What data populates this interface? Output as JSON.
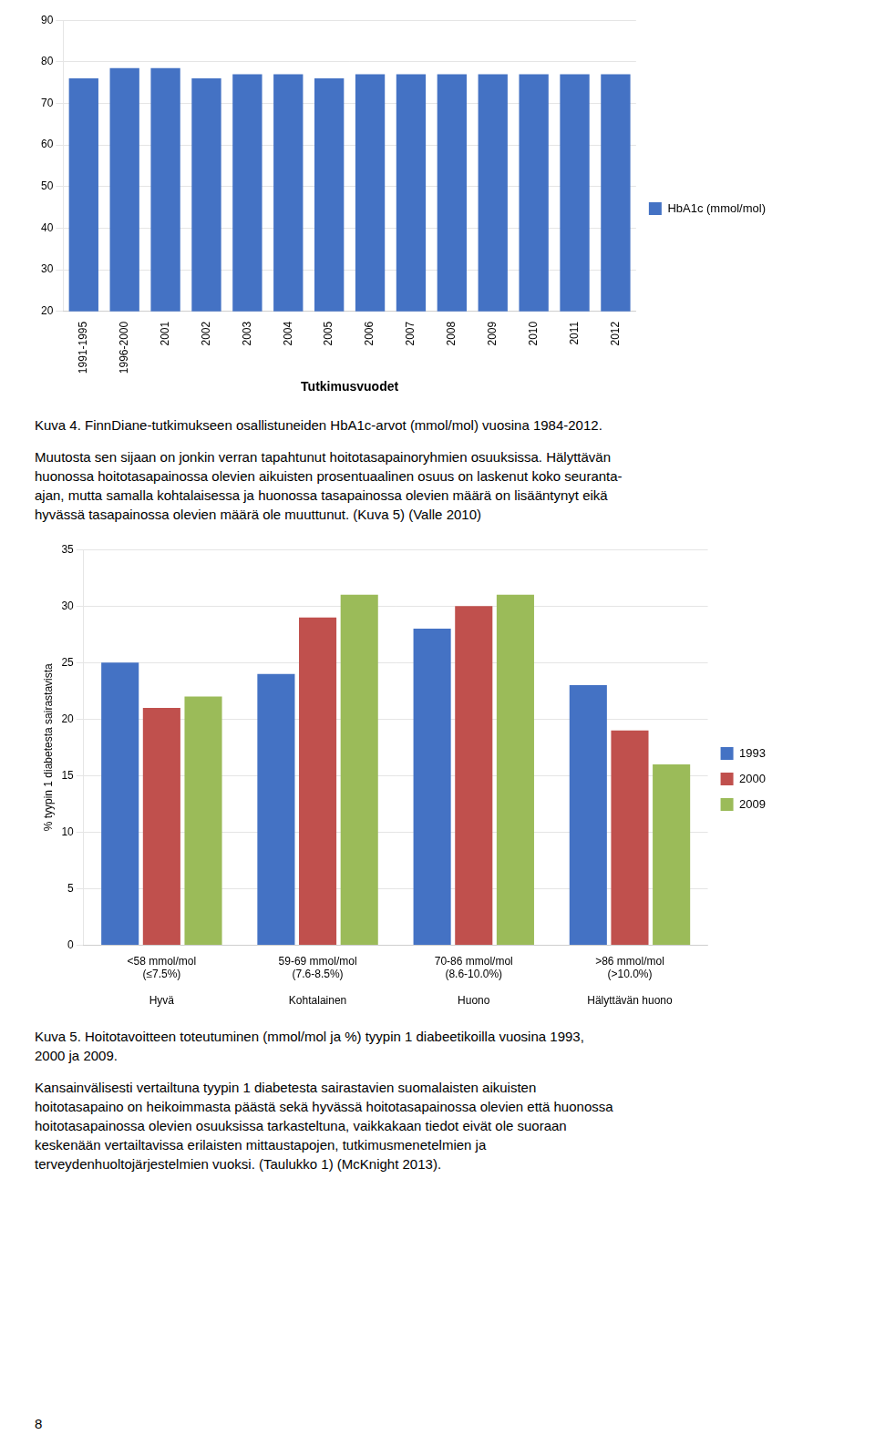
{
  "chart_data": [
    {
      "type": "bar",
      "x_label": "Tutkimusvuodet",
      "categories": [
        "1991-1995",
        "1996-2000",
        "2001",
        "2002",
        "2003",
        "2004",
        "2005",
        "2006",
        "2007",
        "2008",
        "2009",
        "2010",
        "2011",
        "2012"
      ],
      "series": [
        {
          "name": "HbA1c (mmol/mol)",
          "color": "#4472C4",
          "values": [
            76,
            78.5,
            78.5,
            76,
            77,
            77,
            76,
            77,
            77,
            77,
            77,
            77,
            77,
            77
          ]
        }
      ],
      "ylim": [
        20,
        90
      ],
      "yticks": [
        20,
        30,
        40,
        50,
        60,
        70,
        80,
        90
      ],
      "grid": true,
      "legend": "right",
      "annotations": [
        [
          "Kuva 4. FinnDiane-tutkimukseen osallistuneiden HbA1c-arvot (mmol/mol) vuosina 1984-2012."
        ],
        [
          "Muutosta sen sijaan on jonkin verran tapahtunut hoitotasapainoryhmien osuuksissa. Hälyttävän",
          "huonossa hoitotasapainossa olevien aikuisten prosentuaalinen osuus on laskenut koko seuranta-",
          "ajan, mutta samalla kohtalaisessa ja huonossa tasapainossa olevien määrä on lisääntynyt eikä",
          "hyvässä tasapainossa olevien määrä ole muuttunut. (Kuva 5) (Valle 2010)"
        ]
      ]
    },
    {
      "type": "bar",
      "y_label": "% tyypin 1 diabetesta sairastavista",
      "categories": [
        [
          "<58 mmol/mol",
          "(≤7.5%)",
          "",
          "Hyvä"
        ],
        [
          "59-69 mmol/mol",
          "(7.6-8.5%)",
          "",
          "Kohtalainen"
        ],
        [
          "70-86 mmol/mol",
          "(8.6-10.0%)",
          "",
          "Huono"
        ],
        [
          ">86 mmol/mol",
          "(>10.0%)",
          "",
          "Hälyttävän huono"
        ]
      ],
      "series": [
        {
          "name": "1993",
          "color": "#4472C4",
          "values": [
            25,
            24,
            28,
            23
          ]
        },
        {
          "name": "2000",
          "color": "#C0504D",
          "values": [
            21,
            29,
            30,
            19
          ]
        },
        {
          "name": "2009",
          "color": "#9BBB59",
          "values": [
            22,
            31,
            31,
            16
          ]
        }
      ],
      "ylim": [
        0,
        35
      ],
      "yticks": [
        0,
        5,
        10,
        15,
        20,
        25,
        30,
        35
      ],
      "grid": true,
      "legend": "right",
      "annotations": [
        [
          "Kuva 5. Hoitotavoitteen toteutuminen (mmol/mol ja %) tyypin 1 diabeetikoilla vuosina 1993,",
          "2000 ja 2009."
        ],
        [
          "Kansainvälisesti vertailtuna tyypin 1 diabetesta sairastavien suomalaisten aikuisten",
          "hoitotasapaino on heikoimmasta päästä sekä hyvässä hoitotasapainossa olevien että huonossa",
          "hoitotasapainossa olevien osuuksissa tarkasteltuna, vaikkakaan tiedot eivät ole suoraan",
          "keskenään vertailtavissa erilaisten mittaustapojen, tutkimusmenetelmien ja",
          "terveydenhuoltojärjestelmien vuoksi. (Taulukko 1) (McKnight 2013)."
        ],
        [
          "8"
        ]
      ]
    }
  ]
}
